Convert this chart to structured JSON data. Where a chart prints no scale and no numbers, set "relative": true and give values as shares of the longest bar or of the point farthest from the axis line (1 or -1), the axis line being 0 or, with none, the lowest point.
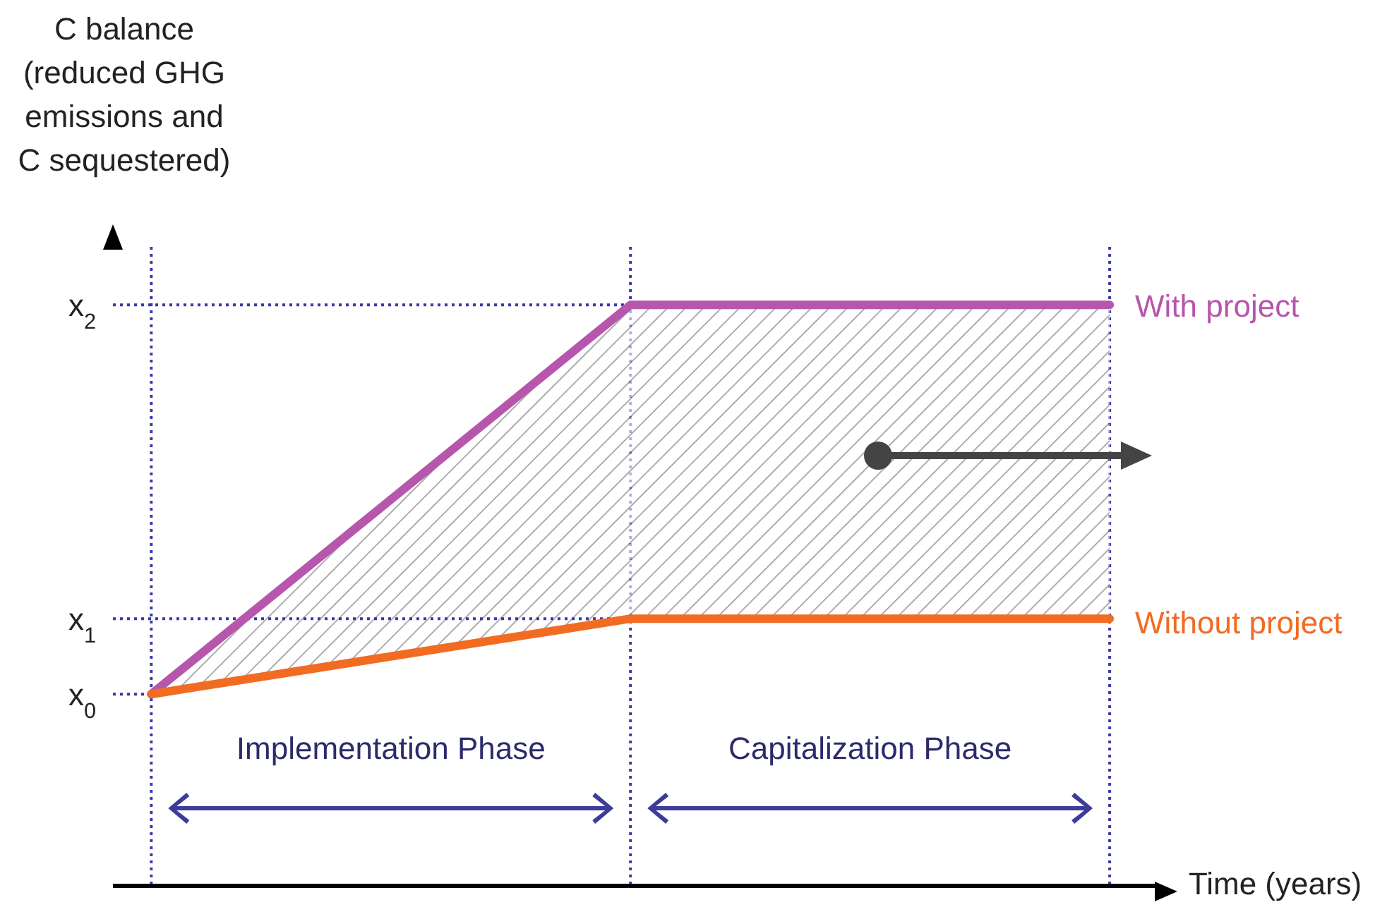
{
  "chart_data": {
    "type": "line",
    "relative": true,
    "xlabel": "Time (years)",
    "ylabel": "C balance (reduced GHG emissions and C sequestered)",
    "categories": [
      null,
      null,
      null
    ],
    "series": [
      {
        "name": "With project",
        "color": "#b656ad",
        "values": [
          0.33,
          1,
          1
        ],
        "lower": [
          0.33,
          0.46,
          0.46
        ],
        "upper": [
          0.33,
          1,
          1
        ]
      },
      {
        "name": "Without project",
        "color": "#f26b22",
        "values": [
          0.33,
          0.46,
          0.46
        ]
      }
    ],
    "ref_lines": [
      {
        "axis": "y",
        "value": 0.33,
        "label": "x$_{0}$",
        "color": "#3a3aa8",
        "line_style": "dotted"
      },
      {
        "axis": "y",
        "value": 0.46,
        "label": "x$_{1}$",
        "color": "#3a3aa8",
        "line_style": "dotted"
      },
      {
        "axis": "y",
        "value": 1,
        "label": "x$_{2}$",
        "color": "#3a3aa8",
        "line_style": "dotted"
      }
    ],
    "annotations": [
      "Implementation Phase",
      "Capitalization Phase"
    ],
    "grid": "x",
    "legend": false
  }
}
